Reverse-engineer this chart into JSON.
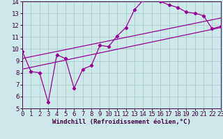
{
  "xlabel": "Windchill (Refroidissement éolien,°C)",
  "bg_color": "#cce8e8",
  "grid_color": "#aacccc",
  "line_color": "#990099",
  "tick_color": "#440044",
  "x_min": 0,
  "x_max": 23,
  "y_min": 5,
  "y_max": 14,
  "line1_x": [
    0,
    1,
    2,
    3,
    4,
    5,
    6,
    7,
    8,
    9,
    10,
    11,
    12,
    13,
    14,
    15,
    16,
    17,
    18,
    19,
    20,
    21,
    22,
    23
  ],
  "line1_y": [
    9.8,
    8.1,
    8.0,
    5.5,
    9.5,
    9.2,
    6.7,
    8.3,
    8.6,
    10.3,
    10.2,
    11.1,
    11.8,
    13.3,
    14.1,
    14.2,
    14.0,
    13.7,
    13.5,
    13.1,
    13.0,
    12.8,
    11.7,
    11.9
  ],
  "line2_x": [
    0,
    23
  ],
  "line2_y": [
    8.3,
    11.8
  ],
  "line3_x": [
    0,
    23
  ],
  "line3_y": [
    9.2,
    12.6
  ],
  "xticks": [
    0,
    1,
    2,
    3,
    4,
    5,
    6,
    7,
    8,
    9,
    10,
    11,
    12,
    13,
    14,
    15,
    16,
    17,
    18,
    19,
    20,
    21,
    22,
    23
  ],
  "yticks": [
    5,
    6,
    7,
    8,
    9,
    10,
    11,
    12,
    13,
    14
  ],
  "tick_fontsize": 6.5,
  "xlabel_fontsize": 6.5
}
